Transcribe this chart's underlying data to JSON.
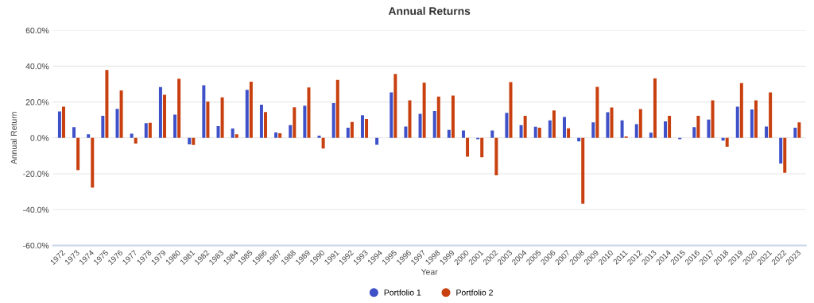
{
  "chart_data": {
    "type": "bar",
    "title": "Annual Returns",
    "xlabel": "Year",
    "ylabel": "Annual Return",
    "categories": [
      "1972",
      "1973",
      "1974",
      "1975",
      "1976",
      "1977",
      "1978",
      "1979",
      "1980",
      "1981",
      "1982",
      "1983",
      "1984",
      "1985",
      "1986",
      "1987",
      "1988",
      "1989",
      "1990",
      "1991",
      "1992",
      "1993",
      "1994",
      "1995",
      "1996",
      "1997",
      "1998",
      "1999",
      "2000",
      "2001",
      "2002",
      "2003",
      "2004",
      "2005",
      "2006",
      "2007",
      "2008",
      "2009",
      "2010",
      "2011",
      "2012",
      "2013",
      "2014",
      "2015",
      "2016",
      "2017",
      "2018",
      "2019",
      "2020",
      "2021",
      "2022",
      "2023"
    ],
    "series": [
      {
        "name": "Portfolio 1",
        "color": "#3f51c8",
        "values": [
          14.7,
          6.0,
          2.0,
          12.3,
          16.2,
          2.3,
          8.2,
          28.3,
          13.0,
          -3.6,
          29.3,
          6.5,
          5.2,
          26.8,
          18.5,
          3.0,
          7.1,
          18.0,
          1.2,
          19.4,
          5.7,
          12.6,
          -3.9,
          25.4,
          6.3,
          13.4,
          15.0,
          4.4,
          4.1,
          -0.8,
          4.1,
          14.0,
          7.1,
          6.2,
          9.8,
          11.6,
          -2.0,
          8.6,
          14.3,
          9.8,
          7.7,
          2.9,
          9.2,
          -0.8,
          6.0,
          10.2,
          -1.5,
          17.4,
          15.8,
          6.3,
          -14.3,
          5.7
        ]
      },
      {
        "name": "Portfolio 2",
        "color": "#c8400f",
        "values": [
          17.4,
          -18.0,
          -27.7,
          37.9,
          26.5,
          -3.2,
          8.4,
          24.0,
          33.0,
          -4.0,
          20.3,
          22.6,
          2.0,
          31.3,
          14.4,
          2.6,
          17.1,
          28.1,
          -6.0,
          32.3,
          8.9,
          10.5,
          null,
          35.6,
          20.9,
          30.8,
          23.0,
          23.6,
          -10.5,
          -10.8,
          -20.9,
          31.1,
          12.3,
          5.7,
          15.3,
          5.3,
          -36.7,
          28.4,
          17.0,
          0.8,
          16.1,
          33.2,
          12.3,
          null,
          12.3,
          20.9,
          -5.0,
          30.5,
          20.9,
          25.4,
          -19.4,
          8.6
        ]
      }
    ],
    "ylim": [
      -60,
      60
    ],
    "yticks": [
      {
        "value": -60,
        "label": "-60.0%"
      },
      {
        "value": -40,
        "label": "-40.0%"
      },
      {
        "value": -20,
        "label": "-20.0%"
      },
      {
        "value": 0,
        "label": "0.0%"
      },
      {
        "value": 20,
        "label": "20.0%"
      },
      {
        "value": 40,
        "label": "40.0%"
      },
      {
        "value": 60,
        "label": "60.0%"
      }
    ],
    "grid": "y",
    "legend": "bottom"
  }
}
